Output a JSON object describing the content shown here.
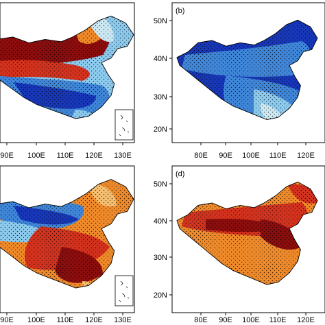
{
  "panels": [
    {
      "id": "a",
      "label": "",
      "palette": "mixed-north-warm",
      "x_ticks": [
        "90E",
        "100E",
        "110E",
        "120E",
        "130E"
      ],
      "y_ticks": [],
      "has_inset": true
    },
    {
      "id": "b",
      "label": "(b)",
      "palette": "cool",
      "x_ticks": [
        "80E",
        "90E",
        "100E",
        "110E",
        "120E"
      ],
      "y_ticks": [
        "50N",
        "40N",
        "30N",
        "20N"
      ],
      "has_inset": false
    },
    {
      "id": "c",
      "label": "",
      "palette": "mixed-north-cool",
      "x_ticks": [
        "90E",
        "100E",
        "110E",
        "120E",
        "130E"
      ],
      "y_ticks": [],
      "has_inset": true
    },
    {
      "id": "d",
      "label": "(d)",
      "palette": "warm",
      "x_ticks": [
        "80E",
        "90E",
        "100E",
        "110E",
        "120E"
      ],
      "y_ticks": [
        "50N",
        "40N",
        "30N",
        "20N"
      ],
      "has_inset": false
    }
  ],
  "colors": {
    "dark_red": "#8b0d0d",
    "red": "#d2321e",
    "orange": "#ef8a2a",
    "light_orange": "#f7c070",
    "pale_yellow": "#fbe9a8",
    "pale_blue": "#cde9f4",
    "light_blue": "#8ccaee",
    "blue": "#3f86d9",
    "dark_blue": "#1737b8",
    "frame": "#000000"
  }
}
